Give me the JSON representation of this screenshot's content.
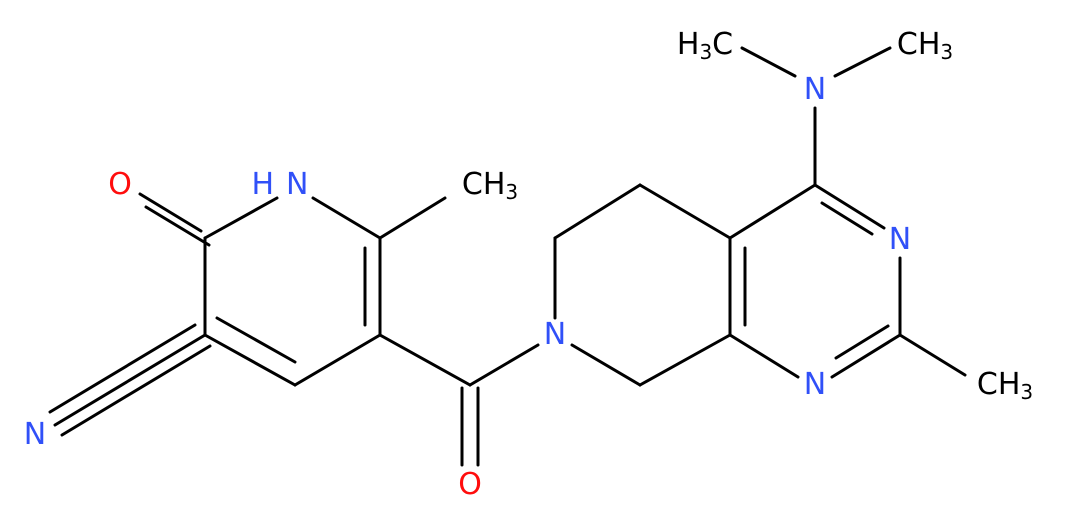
{
  "labels": [
    {
      "text": "H",
      "sub": "3",
      "post": "C",
      "color": "#000000"
    },
    {
      "text": "N",
      "color": "#3050f8"
    },
    {
      "text": "CH",
      "sub": "3",
      "color": "#000000"
    },
    {
      "text": "N",
      "color": "#3050f8"
    },
    {
      "text": "N",
      "color": "#3050f8"
    },
    {
      "text": "CH",
      "sub": "3",
      "color": "#000000"
    },
    {
      "text": "N",
      "color": "#3050f8"
    },
    {
      "text": "O",
      "color": "#ff0d0d"
    },
    {
      "text": "H",
      "post": "N",
      "color": "#3050f8"
    },
    {
      "text": "CH",
      "sub": "3",
      "color": "#000000"
    },
    {
      "text": "O",
      "color": "#ff0d0d"
    },
    {
      "text": "N",
      "color": "#3050f8"
    }
  ]
}
